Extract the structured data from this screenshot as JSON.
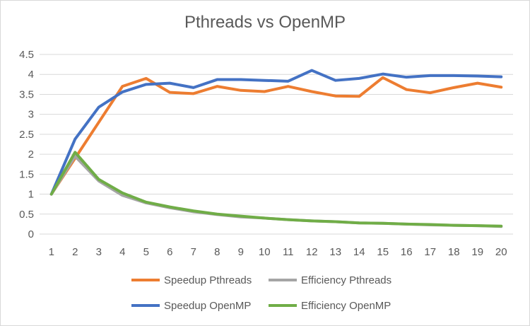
{
  "chart_data": {
    "type": "line",
    "title": "Pthreads vs OpenMP",
    "xlabel": "",
    "ylabel": "",
    "x": [
      1,
      2,
      3,
      4,
      5,
      6,
      7,
      8,
      9,
      10,
      11,
      12,
      13,
      14,
      15,
      16,
      17,
      18,
      19,
      20
    ],
    "ylim": [
      0,
      4.5
    ],
    "yticks": [
      "0",
      "0.5",
      "1",
      "1.5",
      "2",
      "2.5",
      "3",
      "3.5",
      "4",
      "4.5"
    ],
    "grid": true,
    "legend_position": "bottom",
    "series": [
      {
        "name": "Speedup Pthreads",
        "color": "#ED7D31",
        "values": [
          1,
          1.9,
          2.8,
          3.7,
          3.9,
          3.55,
          3.52,
          3.7,
          3.6,
          3.57,
          3.7,
          3.57,
          3.46,
          3.45,
          3.92,
          3.62,
          3.54,
          3.67,
          3.78,
          3.68
        ]
      },
      {
        "name": "Efficiency Pthreads",
        "color": "#A5A5A5",
        "values": [
          1,
          1.95,
          1.33,
          0.97,
          0.78,
          0.66,
          0.56,
          0.49,
          0.43,
          0.4,
          0.36,
          0.33,
          0.31,
          0.28,
          0.27,
          0.25,
          0.23,
          0.22,
          0.21,
          0.19
        ]
      },
      {
        "name": "Speedup OpenMP",
        "color": "#4472C4",
        "values": [
          1,
          2.38,
          3.18,
          3.56,
          3.75,
          3.78,
          3.67,
          3.87,
          3.87,
          3.85,
          3.83,
          4.1,
          3.85,
          3.9,
          4.01,
          3.93,
          3.97,
          3.97,
          3.96,
          3.94
        ]
      },
      {
        "name": "Efficiency OpenMP",
        "color": "#70AD47",
        "values": [
          1,
          2.05,
          1.37,
          1.03,
          0.8,
          0.68,
          0.58,
          0.5,
          0.45,
          0.4,
          0.36,
          0.33,
          0.31,
          0.28,
          0.27,
          0.25,
          0.24,
          0.22,
          0.21,
          0.2
        ]
      }
    ]
  }
}
